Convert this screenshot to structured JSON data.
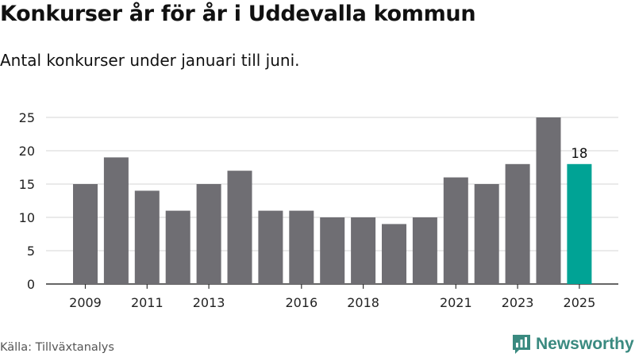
{
  "title": "Konkurser år för år i Uddevalla kommun",
  "subtitle": "Antal konkurser under januari till juni.",
  "source": "Källa: Tillväxtanalys",
  "logo": {
    "text": "Newsworthy",
    "icon": "newsworthy-chart-logo-icon",
    "color": "#3a8a80"
  },
  "colors": {
    "bar": "#6f6e73",
    "highlight": "#00a395",
    "grid": "#dddddd",
    "axis": "#333333"
  },
  "chart_data": {
    "type": "bar",
    "title": "Konkurser år för år i Uddevalla kommun",
    "subtitle": "Antal konkurser under januari till juni.",
    "categories": [
      "2009",
      "2010",
      "2011",
      "2012",
      "2013",
      "2014",
      "2015",
      "2016",
      "2017",
      "2018",
      "2019",
      "2020",
      "2021",
      "2022",
      "2023",
      "2024",
      "2025"
    ],
    "values": [
      15,
      19,
      14,
      11,
      15,
      17,
      11,
      11,
      10,
      10,
      9,
      10,
      16,
      15,
      18,
      25,
      18
    ],
    "x_tick_labels": [
      "2009",
      "2011",
      "2013",
      "2016",
      "2018",
      "2021",
      "2023",
      "2025"
    ],
    "y_ticks": [
      0,
      5,
      10,
      15,
      20,
      25
    ],
    "ylim": [
      0,
      25
    ],
    "grid": true,
    "highlight": {
      "category": "2025",
      "label": "18"
    }
  }
}
